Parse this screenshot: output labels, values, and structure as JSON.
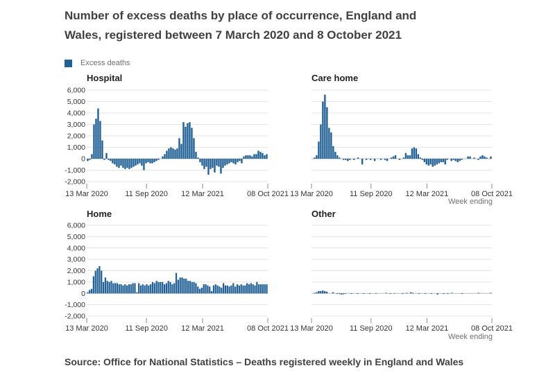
{
  "title": "Number of excess deaths by place of occurrence, England and Wales, registered between 7 March 2020 and 8 October 2021",
  "source": "Source: Office for National Statistics – Deaths registered weekly in England and Wales",
  "legend": {
    "label": "Excess deaths",
    "color": "#206095"
  },
  "axis_note": "Week ending",
  "chart_data": [
    {
      "type": "bar",
      "title": "Hospital",
      "ylim": [
        -2000,
        6000
      ],
      "y_ticks": [
        "6,000",
        "5,000",
        "4,000",
        "3,000",
        "2,000",
        "1,000",
        "0",
        "-1,000",
        "-2,000"
      ],
      "x_ticks": [
        "13 Mar 2020",
        "11 Sep 2020",
        "12 Mar 2021",
        "08 Oct 2021"
      ],
      "values": [
        -200,
        -100,
        400,
        3000,
        3500,
        4400,
        3300,
        1600,
        -100,
        500,
        -100,
        -200,
        -400,
        -500,
        -700,
        -800,
        -600,
        -800,
        -900,
        -800,
        -900,
        -800,
        -700,
        -600,
        -500,
        -400,
        -600,
        -1000,
        -400,
        -300,
        -400,
        -400,
        -300,
        -200,
        -100,
        0,
        200,
        400,
        700,
        900,
        1000,
        900,
        800,
        900,
        1800,
        1300,
        3200,
        2800,
        3100,
        3200,
        2700,
        1800,
        600,
        100,
        -300,
        -600,
        -900,
        -700,
        -1400,
        -900,
        -800,
        -1200,
        -600,
        -700,
        -1300,
        -800,
        -600,
        -500,
        -400,
        -300,
        -400,
        -500,
        -300,
        -200,
        -400,
        200,
        300,
        300,
        300,
        200,
        400,
        400,
        700,
        600,
        500,
        300,
        400
      ],
      "grid": true
    },
    {
      "type": "bar",
      "title": "Care home",
      "ylim": [
        -2000,
        6000
      ],
      "y_ticks": [],
      "x_ticks": [
        "13 Mar 2020",
        "11 Sep 2020",
        "12 Mar 2021",
        "08 Oct 2021"
      ],
      "values": [
        0,
        100,
        300,
        1500,
        3000,
        5000,
        5600,
        4500,
        2700,
        2300,
        1100,
        600,
        300,
        100,
        0,
        -100,
        -100,
        -200,
        -100,
        0,
        -100,
        0,
        100,
        0,
        -500,
        0,
        -100,
        0,
        -100,
        0,
        -200,
        0,
        0,
        -100,
        0,
        -100,
        -200,
        0,
        100,
        200,
        300,
        0,
        -100,
        0,
        100,
        500,
        300,
        300,
        900,
        1000,
        900,
        400,
        100,
        -100,
        -300,
        -500,
        -600,
        -500,
        -700,
        -600,
        -500,
        -400,
        -300,
        -300,
        -500,
        -100,
        0,
        -200,
        -100,
        -200,
        -300,
        -200,
        -100,
        0,
        0,
        200,
        200,
        0,
        100,
        0,
        -100,
        200,
        300,
        200,
        100,
        0,
        200
      ],
      "grid": true
    },
    {
      "type": "bar",
      "title": "Home",
      "ylim": [
        -2000,
        6000
      ],
      "y_ticks": [
        "6,000",
        "5,000",
        "4,000",
        "3,000",
        "2,000",
        "1,000",
        "0",
        "-1,000",
        "-2,000"
      ],
      "x_ticks": [
        "13 Mar 2020",
        "11 Sep 2020",
        "12 Mar 2021",
        "08 Oct 2021"
      ],
      "values": [
        100,
        300,
        400,
        1500,
        2000,
        2200,
        2400,
        2000,
        1000,
        1400,
        1100,
        1000,
        1100,
        900,
        900,
        900,
        800,
        800,
        700,
        800,
        700,
        800,
        800,
        900,
        900,
        100,
        900,
        700,
        800,
        700,
        800,
        700,
        800,
        1000,
        900,
        1100,
        1000,
        1000,
        1000,
        800,
        900,
        1100,
        1000,
        800,
        900,
        1800,
        1200,
        1400,
        1400,
        1300,
        1300,
        1100,
        1100,
        1000,
        1000,
        900,
        600,
        400,
        500,
        800,
        800,
        700,
        600,
        200,
        700,
        800,
        700,
        600,
        500,
        900,
        700,
        700,
        600,
        700,
        900,
        600,
        800,
        700,
        800,
        700,
        700,
        900,
        800,
        900,
        800,
        700,
        1000,
        800,
        800,
        800,
        800,
        800
      ],
      "grid": true
    },
    {
      "type": "bar",
      "title": "Other",
      "ylim": [
        -2000,
        6000
      ],
      "y_ticks": [],
      "x_ticks": [
        "13 Mar 2020",
        "11 Sep 2020",
        "12 Mar 2021",
        "08 Oct 2021"
      ],
      "values": [
        0,
        50,
        100,
        200,
        200,
        250,
        200,
        150,
        0,
        0,
        100,
        0,
        -50,
        -50,
        -100,
        -80,
        -50,
        0,
        0,
        -50,
        0,
        0,
        -50,
        0,
        0,
        -50,
        0,
        0,
        -50,
        0,
        0,
        -30,
        0,
        0,
        0,
        0,
        50,
        0,
        -50,
        0,
        -30,
        0,
        0,
        0,
        -50,
        0,
        50,
        0,
        100,
        50,
        0,
        0,
        -50,
        0,
        0,
        -50,
        0,
        0,
        -50,
        0,
        0,
        -100,
        0,
        0,
        -50,
        0,
        -50,
        0,
        50,
        0,
        0,
        0,
        0,
        -50,
        0,
        0,
        0,
        0,
        0,
        0,
        0,
        50,
        0,
        0,
        0,
        0,
        0,
        50
      ],
      "grid": true
    }
  ]
}
